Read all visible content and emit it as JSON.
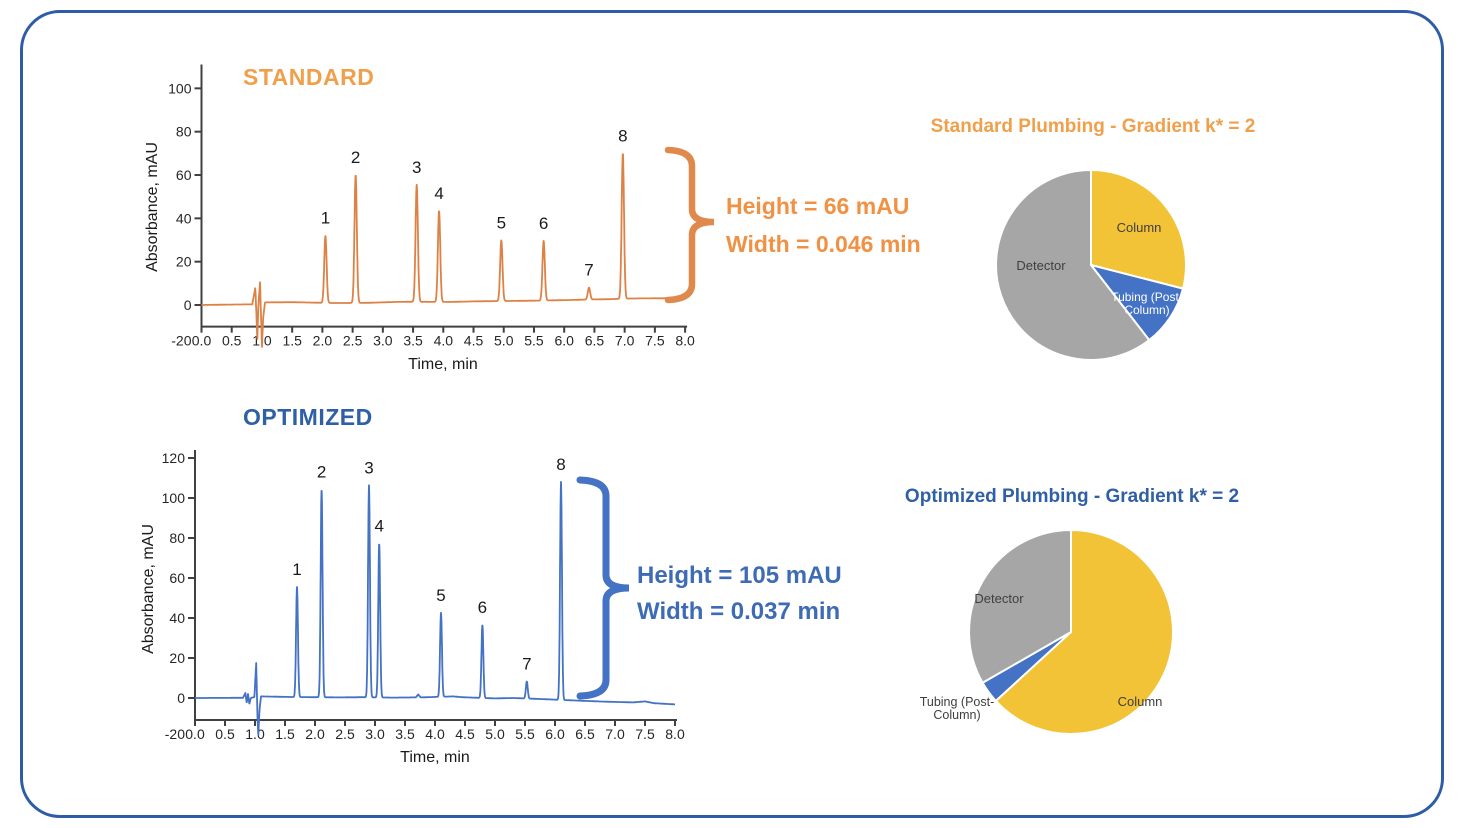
{
  "frame": {
    "border_color": "#2E5CA6"
  },
  "chart_data": [
    {
      "id": "standard_chromatogram",
      "type": "line",
      "title": "STANDARD",
      "title_color": "#F0A04B",
      "xlabel": "Time, min",
      "ylabel": "Absorbance, mAU",
      "xlim": [
        0.0,
        8.0
      ],
      "ylim": [
        -20,
        100
      ],
      "xticks": [
        "0.0",
        "0.5",
        "1.0",
        "1.5",
        "2.0",
        "2.5",
        "3.0",
        "3.5",
        "4.0",
        "4.5",
        "5.0",
        "5.5",
        "6.0",
        "6.5",
        "7.0",
        "7.5",
        "8.0"
      ],
      "yticks": [
        100,
        80,
        60,
        40,
        20,
        0,
        -20
      ],
      "axis_cross_y": -10,
      "grid": false,
      "trace_color": "#DD8246",
      "peak_fwhm_min": 0.046,
      "peaks": [
        {
          "n": "1",
          "t": 2.05,
          "h": 31
        },
        {
          "n": "2",
          "t": 2.55,
          "h": 59
        },
        {
          "n": "3",
          "t": 3.56,
          "h": 54
        },
        {
          "n": "4",
          "t": 3.93,
          "h": 42
        },
        {
          "n": "5",
          "t": 4.96,
          "h": 28
        },
        {
          "n": "6",
          "t": 5.66,
          "h": 27.5
        },
        {
          "n": "7",
          "t": 6.41,
          "h": 5.5
        },
        {
          "n": "8",
          "t": 6.97,
          "h": 67
        }
      ],
      "baseline": [
        [
          0,
          0
        ],
        [
          0.5,
          0.2
        ],
        [
          0.84,
          0.3
        ],
        [
          0.89,
          8
        ],
        [
          0.907,
          -3
        ],
        [
          0.923,
          -16.5
        ],
        [
          0.94,
          -1
        ],
        [
          0.968,
          10.5
        ],
        [
          0.985,
          -5
        ],
        [
          1.0,
          -19.5
        ],
        [
          1.02,
          -6
        ],
        [
          1.05,
          1.2
        ],
        [
          1.5,
          1.3
        ],
        [
          2.2,
          0.9
        ],
        [
          2.75,
          1.0
        ],
        [
          3.2,
          1.4
        ],
        [
          3.45,
          1.5
        ],
        [
          4.1,
          1.4
        ],
        [
          4.55,
          1.7
        ],
        [
          4.9,
          1.8
        ],
        [
          5.5,
          2.0
        ],
        [
          6.1,
          2.3
        ],
        [
          6.35,
          2.5
        ],
        [
          6.75,
          2.7
        ],
        [
          7.1,
          3.0
        ],
        [
          7.6,
          3.1
        ],
        [
          8.0,
          3.2
        ]
      ],
      "annotation": {
        "line1": "Height = 66 mAU",
        "line2": "Width = 0.046 min",
        "text_color": "#F09143",
        "brace_color": "#DF8A4C"
      }
    },
    {
      "id": "standard_pie",
      "type": "pie",
      "title": "Standard Plumbing - Gradient k* = 2",
      "title_color": "#F0A04B",
      "legend_position": "none",
      "slices": [
        {
          "label": "Column",
          "value": 29,
          "color": "#F2C237"
        },
        {
          "label": "Tubing (Post-Column)",
          "value": 10.5,
          "color": "#4472C4"
        },
        {
          "label": "Detector",
          "value": 60.5,
          "color": "#A6A6A6"
        }
      ]
    },
    {
      "id": "optimized_chromatogram",
      "type": "line",
      "title": "OPTIMIZED",
      "title_color": "#2F5FA5",
      "xlabel": "Time, min",
      "ylabel": "Absorbance, mAU",
      "xlim": [
        0.0,
        8.0
      ],
      "ylim": [
        -20,
        120
      ],
      "xticks": [
        "0.0",
        "0.5",
        "1.0",
        "1.5",
        "2.0",
        "2.5",
        "3.0",
        "3.5",
        "4.0",
        "4.5",
        "5.0",
        "5.5",
        "6.0",
        "6.5",
        "7.0",
        "7.5",
        "8.0"
      ],
      "yticks": [
        120,
        100,
        80,
        60,
        40,
        20,
        0,
        -20
      ],
      "axis_cross_y": -11,
      "grid": false,
      "trace_color": "#4472C4",
      "peak_fwhm_min": 0.037,
      "peaks": [
        {
          "n": "1",
          "t": 1.7,
          "h": 55
        },
        {
          "n": "2",
          "t": 2.11,
          "h": 104
        },
        {
          "n": "3",
          "t": 2.9,
          "h": 106
        },
        {
          "n": "4",
          "t": 3.07,
          "h": 77
        },
        {
          "n": "5",
          "t": 4.1,
          "h": 42
        },
        {
          "n": "6",
          "t": 4.79,
          "h": 36.5
        },
        {
          "n": "7",
          "t": 5.53,
          "h": 8.5
        },
        {
          "n": "8",
          "t": 6.1,
          "h": 109
        }
      ],
      "baseline": [
        [
          0,
          0
        ],
        [
          0.8,
          0.1
        ],
        [
          0.84,
          2.5
        ],
        [
          0.862,
          -2.5
        ],
        [
          0.884,
          2
        ],
        [
          0.906,
          -3
        ],
        [
          0.93,
          0
        ],
        [
          0.99,
          0.5
        ],
        [
          1.02,
          17.5
        ],
        [
          1.04,
          -8
        ],
        [
          1.055,
          -19
        ],
        [
          1.075,
          -6
        ],
        [
          1.1,
          0.8
        ],
        [
          1.6,
          0.5
        ],
        [
          2.4,
          0.3
        ],
        [
          2.8,
          0.4
        ],
        [
          3.3,
          0.2
        ],
        [
          3.68,
          0.3
        ],
        [
          3.72,
          1.8
        ],
        [
          3.76,
          0.3
        ],
        [
          4.3,
          0.8
        ],
        [
          4.45,
          0.4
        ],
        [
          5.0,
          -0.2
        ],
        [
          5.3,
          0
        ],
        [
          5.75,
          -0.5
        ],
        [
          6.3,
          -1.2
        ],
        [
          6.8,
          -1.8
        ],
        [
          7.3,
          -2.2
        ],
        [
          7.5,
          -1.7
        ],
        [
          7.65,
          -2.6
        ],
        [
          8.0,
          -3.2
        ]
      ],
      "annotation": {
        "line1": "Height = 105 mAU",
        "line2": "Width = 0.037 min",
        "text_color": "#3D6BB5",
        "brace_color": "#4472C4"
      }
    },
    {
      "id": "optimized_pie",
      "type": "pie",
      "title": "Optimized Plumbing - Gradient k* = 2",
      "title_color": "#2F5FA5",
      "legend_position": "none",
      "slices": [
        {
          "label": "Column",
          "value": 63.2,
          "color": "#F2C237"
        },
        {
          "label": "Tubing (Post-Column)",
          "value": 3.5,
          "color": "#4472C4"
        },
        {
          "label": "Detector",
          "value": 33.3,
          "color": "#A6A6A6"
        }
      ]
    }
  ]
}
